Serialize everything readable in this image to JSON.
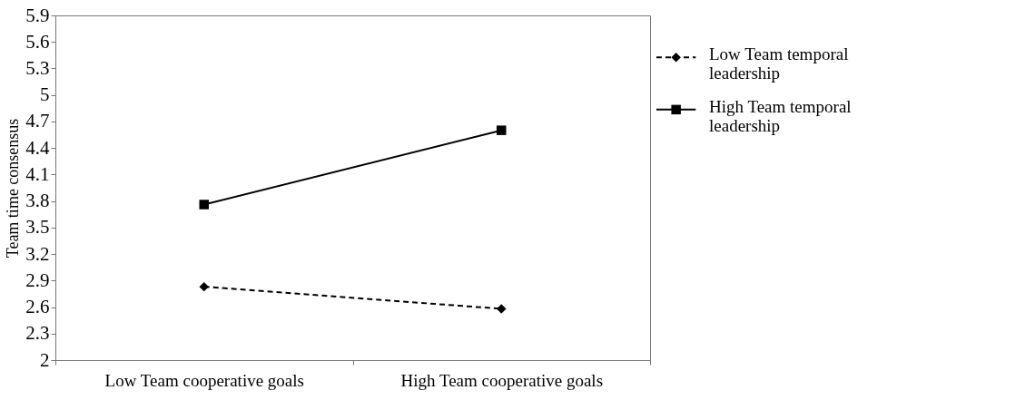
{
  "chart_data": {
    "type": "line",
    "ylabel": "Team time consensus",
    "categories": [
      "Low Team cooperative goals",
      "High Team cooperative goals"
    ],
    "ylim": [
      2,
      5.9
    ],
    "yticks": [
      2,
      2.3,
      2.6,
      2.9,
      3.2,
      3.5,
      3.8,
      4.1,
      4.4,
      4.7,
      5,
      5.3,
      5.6,
      5.9
    ],
    "grid": false,
    "legend": "right",
    "series": [
      {
        "name": "Low Team temporal leadership",
        "color": "#000000",
        "values": [
          2.83,
          2.58
        ],
        "marker": "diamond",
        "line_style": "dashed"
      },
      {
        "name": "High Team temporal leadership",
        "color": "#000000",
        "values": [
          3.76,
          4.6
        ],
        "marker": "square",
        "line_style": "solid"
      }
    ]
  }
}
